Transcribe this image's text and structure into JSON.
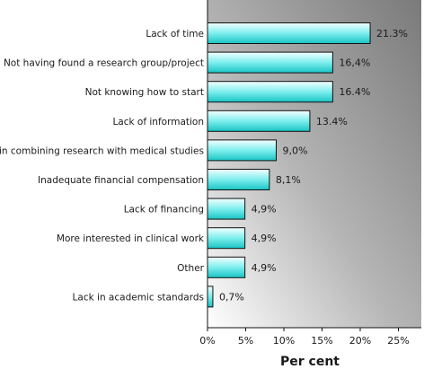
{
  "chart_data": {
    "type": "bar",
    "orientation": "horizontal",
    "title": "",
    "xlabel": "Per cent",
    "ylabel": "",
    "xlim": [
      0,
      28
    ],
    "xticks": [
      0,
      5,
      10,
      15,
      20,
      25
    ],
    "xtick_labels": [
      "0%",
      "5%",
      "10%",
      "15%",
      "20%",
      "25%"
    ],
    "grid": false,
    "legend": "none",
    "categories": [
      "Lack of time",
      "Not having found a research group/project",
      "Not knowing how to start",
      "Lack of information",
      "Difficulty in combining research with medical studies",
      "Inadequate financial compensation",
      "Lack of financing",
      "More interested in clinical work",
      "Other",
      "Lack in academic standards"
    ],
    "values": [
      21.3,
      16.4,
      16.4,
      13.4,
      9.0,
      8.1,
      4.9,
      4.9,
      4.9,
      0.7
    ],
    "value_labels": [
      "21.3%",
      "16,4%",
      "16.4%",
      "13.4%",
      "9,0%",
      "8,1%",
      "4,9%",
      "4,9%",
      "4,9%",
      "0,7%"
    ],
    "colors": {
      "bar_light": "#f4ffff",
      "bar_mid": "#7eeeee",
      "bar_dark": "#19c4c4",
      "bar_stroke": "#111111",
      "panel_dark": "#7a7a7a",
      "panel_light": "#ffffff"
    }
  }
}
